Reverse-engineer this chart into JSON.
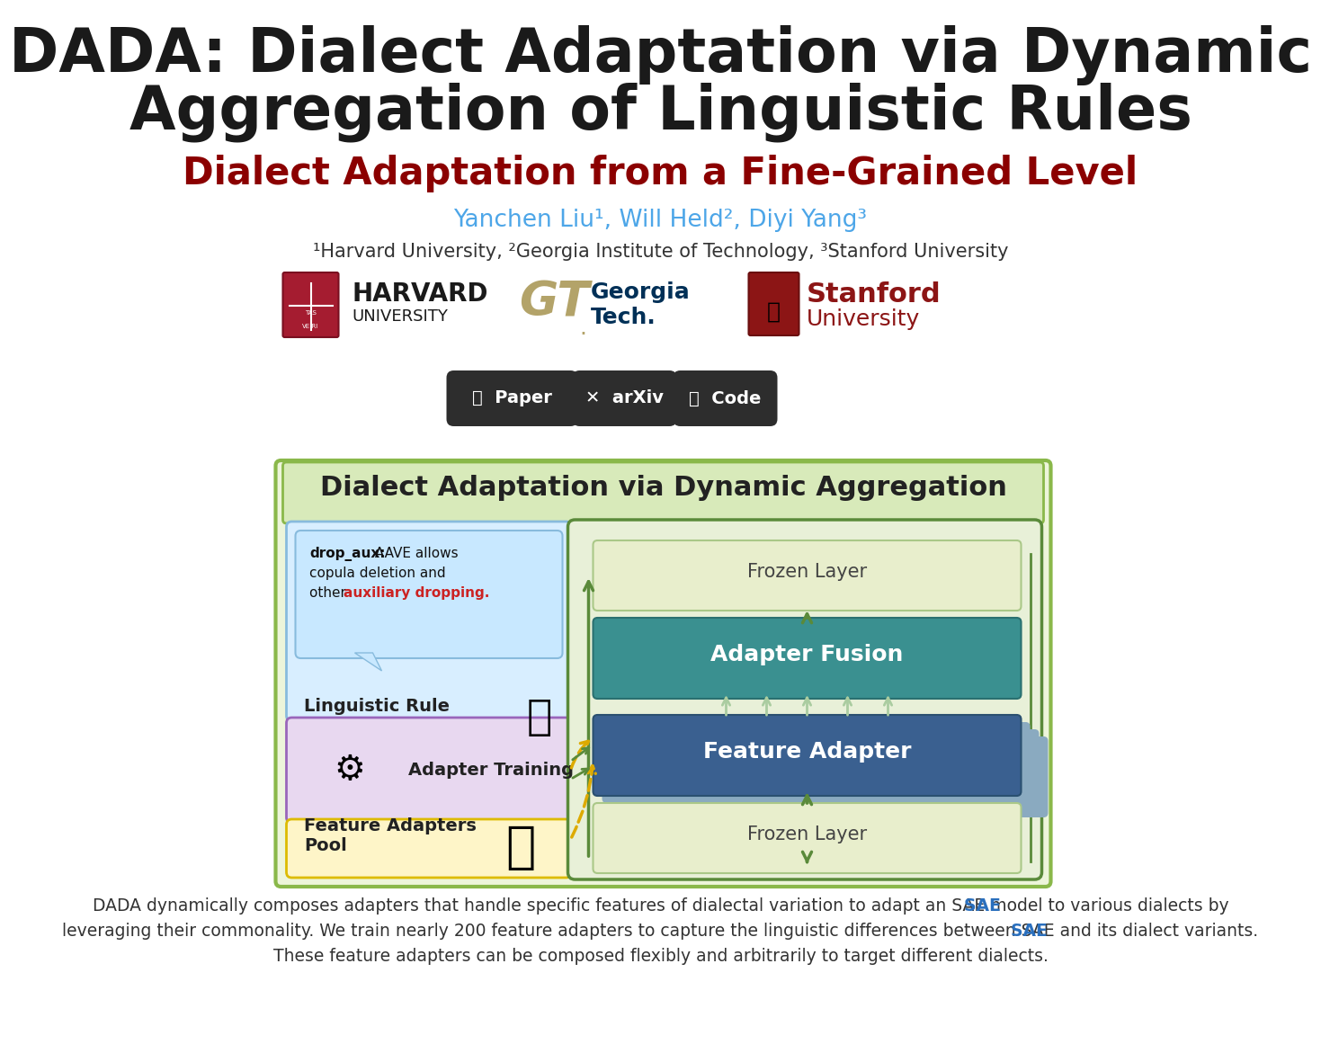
{
  "title_line1": "DADA: Dialect Adaptation via Dynamic",
  "title_line2": "Aggregation of Linguistic Rules",
  "subtitle": "Dialect Adaptation from a Fine-Grained Level",
  "authors": "Yanchen Liu¹, Will Held², Diyi Yang³",
  "affiliations": "¹Harvard University, ²Georgia Institute of Technology, ³Stanford University",
  "diagram_title": "Dialect Adaptation via Dynamic Aggregation",
  "frozen_layer_top": "Frozen Layer",
  "adapter_fusion": "Adapter Fusion",
  "feature_adapter": "Feature Adapter",
  "frozen_layer_bottom": "Frozen Layer",
  "linguistic_rule_title": "Linguistic Rule",
  "adapter_training_label": "Adapter Training",
  "feature_adapters_pool_label": "Feature Adapters\nPool",
  "caption_line1": "DADA dynamically composes adapters that handle specific features of dialectal variation to adapt an ■SAE■ model to various dialects by",
  "caption_line2": "leveraging their commonality. We train nearly 200 feature adapters to capture the linguistic differences between ■SAE■ and its dialect variants.",
  "caption_line3": "These feature adapters can be composed flexibly and arbitrarily to target different dialects.",
  "title_color": "#1a1a1a",
  "subtitle_color": "#8b0000",
  "author_color": "#4da6e8",
  "affiliation_color": "#333333",
  "button_color": "#2d2d2d",
  "background_color": "#ffffff",
  "diagram_outer_border": "#8ab84a",
  "diagram_outer_bg": "#edf5da",
  "right_panel_border": "#5a8a3a",
  "right_panel_bg": "#e8f0d8",
  "frozen_layer_bg": "#e8efd8",
  "frozen_layer_border": "#8ab84a",
  "adapter_fusion_bg": "#3a9090",
  "feature_adapter_bg": "#3a6090",
  "feature_adapter_shadow": "#8aaac0",
  "ling_rule_bg": "#d8eeff",
  "ling_rule_border": "#88bbdd",
  "adapter_train_bg": "#e8d8f0",
  "adapter_train_border": "#9966bb",
  "feat_pool_bg": "#fef5c8",
  "feat_pool_border": "#ddbb00",
  "bubble_bg": "#c8e8ff",
  "bubble_border": "#88bbdd",
  "arrow_green": "#5a8a3a",
  "arrow_light_green": "#aacca0",
  "arrow_yellow": "#ddaa00",
  "highlight_red": "#cc2222",
  "sae_blue": "#2a6fbd",
  "text_dark": "#222222",
  "text_gray": "#444444"
}
